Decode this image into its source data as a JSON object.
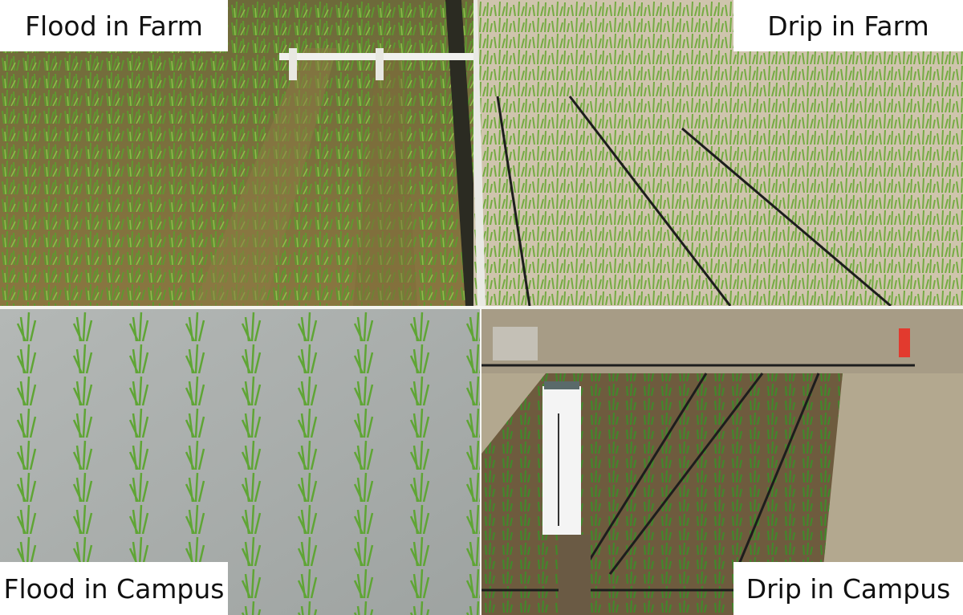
{
  "panels": [
    {
      "id": "flood-farm",
      "label": "Flood in Farm",
      "scene": "rice rows on wet brown soil with white PVC pipe"
    },
    {
      "id": "drip-farm",
      "label": "Drip in Farm",
      "scene": "rice rows on dry pale soil with black drip tubes"
    },
    {
      "id": "flood-campus",
      "label": "Flood in Campus",
      "scene": "rice seedlings standing in grey flood water"
    },
    {
      "id": "drip-campus",
      "label": "Drip in Campus",
      "scene": "drip lines, water gauge post, small rice plot"
    }
  ],
  "colors": {
    "label_bg": "#ffffff",
    "label_text": "#111111",
    "rice_green": "#5c9a2e",
    "soil_wet": "#7a6a3e",
    "soil_dry": "#cfc4ad",
    "flood_water": "#a9adab",
    "drip_tube": "#1d1d1d"
  }
}
